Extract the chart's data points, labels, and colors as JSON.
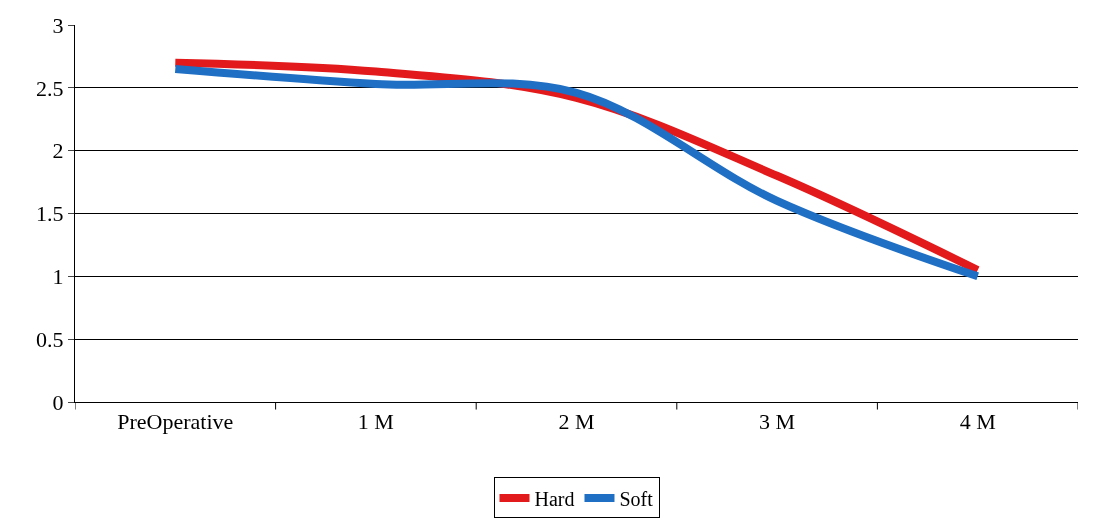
{
  "chart_data": {
    "type": "line",
    "categories": [
      "PreOperative",
      "1 M",
      "2 M",
      "3 M",
      "4 M"
    ],
    "series": [
      {
        "name": "Hard",
        "color": "#e31a1c",
        "values": [
          2.7,
          2.63,
          2.42,
          1.8,
          1.05
        ]
      },
      {
        "name": "Soft",
        "color": "#1f6fc5",
        "values": [
          2.65,
          2.53,
          2.46,
          1.6,
          1.0
        ]
      }
    ],
    "ylim": [
      0,
      3
    ],
    "yticks": [
      0,
      0.5,
      1,
      1.5,
      2,
      2.5,
      3
    ],
    "grid": "y",
    "legend": "bottom",
    "marker": "none",
    "line_style": "solid"
  }
}
